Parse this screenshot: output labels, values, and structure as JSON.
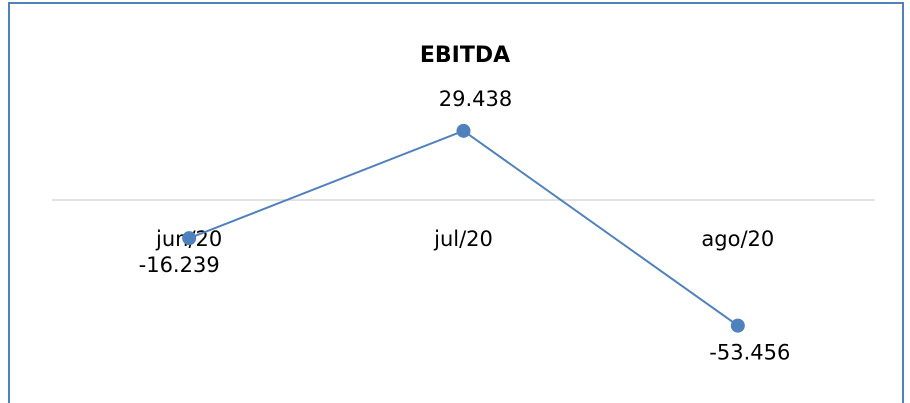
{
  "chart_data": {
    "type": "line",
    "title": "EBITDA",
    "categories": [
      "jun/20",
      "jul/20",
      "ago/20"
    ],
    "series": [
      {
        "name": "EBITDA",
        "color": "#4f81bd",
        "values": [
          -16239,
          29438,
          -53456
        ],
        "value_labels": [
          "-16.239",
          "29.438",
          "-53.456"
        ]
      }
    ],
    "ylim": [
      -60000,
      40000
    ]
  }
}
